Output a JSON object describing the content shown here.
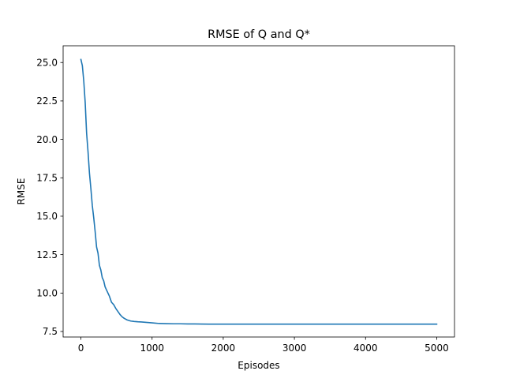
{
  "chart_data": {
    "type": "line",
    "title": "RMSE of Q and Q*",
    "xlabel": "Episodes",
    "ylabel": "RMSE",
    "xlim": [
      -250,
      5250
    ],
    "ylim": [
      7.14,
      26.09
    ],
    "x_ticks": [
      0,
      1000,
      2000,
      3000,
      4000,
      5000
    ],
    "x_tick_labels": [
      "0",
      "1000",
      "2000",
      "3000",
      "4000",
      "5000"
    ],
    "y_ticks": [
      7.5,
      10.0,
      12.5,
      15.0,
      17.5,
      20.0,
      22.5,
      25.0
    ],
    "y_tick_labels": [
      "7.5",
      "10.0",
      "12.5",
      "15.0",
      "17.5",
      "20.0",
      "22.5",
      "25.0"
    ],
    "grid": false,
    "legend": "none",
    "series": [
      {
        "color": "#1f77b4",
        "x": [
          0,
          20,
          40,
          60,
          80,
          100,
          120,
          140,
          160,
          180,
          200,
          220,
          240,
          260,
          280,
          300,
          320,
          340,
          360,
          380,
          400,
          430,
          460,
          490,
          520,
          550,
          580,
          610,
          650,
          700,
          750,
          800,
          850,
          900,
          950,
          1000,
          1100,
          1200,
          1300,
          1400,
          1500,
          1600,
          1800,
          2000,
          2200,
          2400,
          2600,
          2800,
          3000,
          3200,
          3500,
          3800,
          4000,
          4200,
          4500,
          4800,
          5000
        ],
        "values": [
          25.2,
          24.8,
          23.8,
          22.4,
          20.4,
          19.2,
          17.8,
          16.8,
          15.7,
          14.9,
          14.0,
          13.0,
          12.6,
          11.8,
          11.5,
          11.0,
          10.8,
          10.4,
          10.2,
          10.0,
          9.8,
          9.4,
          9.25,
          9.0,
          8.8,
          8.6,
          8.45,
          8.35,
          8.25,
          8.18,
          8.15,
          8.13,
          8.12,
          8.1,
          8.08,
          8.06,
          8.02,
          8.01,
          8.0,
          8.0,
          7.99,
          7.99,
          7.98,
          7.98,
          7.98,
          7.98,
          7.98,
          7.98,
          7.98,
          7.98,
          7.98,
          7.98,
          7.98,
          7.98,
          7.98,
          7.98,
          7.98
        ]
      }
    ]
  }
}
